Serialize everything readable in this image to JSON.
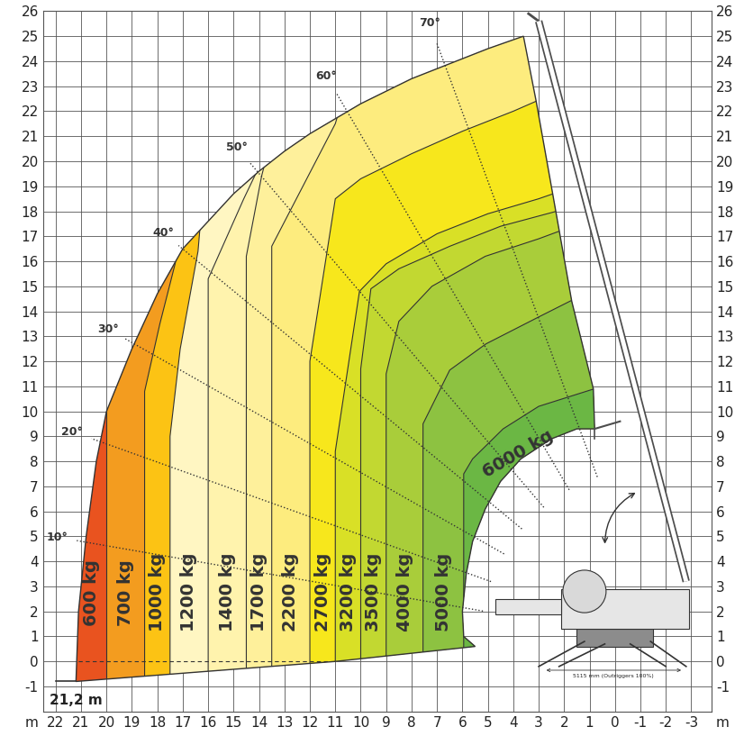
{
  "chart_data": {
    "type": "load_chart",
    "xlabel": "m",
    "xlim": [
      22.5,
      -3.8
    ],
    "ylim": [
      -2,
      26
    ],
    "xticks": [
      22,
      21,
      20,
      19,
      18,
      17,
      16,
      15,
      14,
      13,
      12,
      11,
      10,
      9,
      8,
      7,
      6,
      5,
      4,
      3,
      2,
      1,
      0,
      -1,
      -2,
      -3
    ],
    "yticks": [
      -1,
      0,
      1,
      2,
      3,
      4,
      5,
      6,
      7,
      8,
      9,
      10,
      11,
      12,
      13,
      14,
      15,
      16,
      17,
      18,
      19,
      20,
      21,
      22,
      23,
      24,
      25,
      26
    ],
    "grid": true,
    "envelope": [
      [
        21.2,
        -0.8
      ],
      [
        21.1,
        2
      ],
      [
        20.8,
        5
      ],
      [
        20.4,
        8
      ],
      [
        20,
        10
      ],
      [
        19,
        12.5
      ],
      [
        18,
        14.7
      ],
      [
        17,
        16.5
      ],
      [
        16,
        17.6
      ],
      [
        15,
        18.7
      ],
      [
        14,
        19.6
      ],
      [
        13,
        20.4
      ],
      [
        12,
        21.1
      ],
      [
        11,
        21.7
      ],
      [
        10,
        22.3
      ],
      [
        9,
        22.8
      ],
      [
        8,
        23.3
      ],
      [
        7,
        23.7
      ],
      [
        6,
        24.1
      ],
      [
        5,
        24.5
      ],
      [
        3.6,
        25
      ],
      [
        3.1,
        22.4
      ],
      [
        2.45,
        18.7
      ],
      [
        1.7,
        14.4
      ],
      [
        0.85,
        10.9
      ],
      [
        0.8,
        9.3
      ],
      [
        1.5,
        9.3
      ],
      [
        2.5,
        8.9
      ],
      [
        3.7,
        8.1
      ],
      [
        4.5,
        7.2
      ],
      [
        5.1,
        6.1
      ],
      [
        5.6,
        4.8
      ],
      [
        5.85,
        3.5
      ],
      [
        6.0,
        2.0
      ],
      [
        5.95,
        1.0
      ],
      [
        5.5,
        0.6
      ],
      [
        11,
        0.0
      ]
    ],
    "zones": [
      {
        "label": "600 kg",
        "color": "#e9531f"
      },
      {
        "label": "700 kg",
        "color": "#f39c1f",
        "boundary": [
          [
            20,
            -2
          ],
          [
            20,
            10.5
          ]
        ]
      },
      {
        "label": "1000 kg",
        "color": "#fcc314",
        "boundary": [
          [
            18.5,
            -2
          ],
          [
            18.5,
            10.8
          ],
          [
            17.9,
            13.5
          ],
          [
            17.3,
            15.9
          ],
          [
            17.2,
            16.5
          ]
        ]
      },
      {
        "label": "1200 kg",
        "color": "#fff6c2",
        "boundary": [
          [
            17.5,
            -2
          ],
          [
            17.5,
            9.0
          ],
          [
            17.1,
            12.5
          ],
          [
            16.4,
            16.4
          ],
          [
            16.3,
            17.6
          ]
        ]
      },
      {
        "label": "1400 kg",
        "color": "#fff3ad",
        "boundary": [
          [
            16,
            -2
          ],
          [
            16,
            15.3
          ],
          [
            14.6,
            18.5
          ],
          [
            13.8,
            20.2
          ]
        ]
      },
      {
        "label": "1700 kg",
        "color": "#fef09b",
        "boundary": [
          [
            14.5,
            -2
          ],
          [
            14.5,
            16.2
          ],
          [
            13.9,
            19.4
          ],
          [
            13.7,
            20.2
          ]
        ]
      },
      {
        "label": "2200 kg",
        "color": "#fdec7e",
        "boundary": [
          [
            13.5,
            -2
          ],
          [
            13.5,
            16.6
          ],
          [
            11.0,
            21.5
          ],
          [
            10.8,
            22.2
          ]
        ]
      },
      {
        "label": "2700 kg",
        "color": "#f7e71c",
        "boundary": [
          [
            12,
            -2
          ],
          [
            12,
            12.0
          ],
          [
            11.0,
            18.5
          ],
          [
            10,
            19.3
          ],
          [
            8,
            20.3
          ],
          [
            6,
            21.2
          ],
          [
            4,
            22.0
          ],
          [
            3.1,
            22.4
          ],
          [
            2.6,
            22.5
          ]
        ]
      },
      {
        "label": "3200 kg",
        "color": "#d9e026",
        "boundary": [
          [
            11,
            -2
          ],
          [
            11,
            8.4
          ],
          [
            10.05,
            14.8
          ],
          [
            9,
            15.9
          ],
          [
            7,
            17.1
          ],
          [
            5,
            17.9
          ],
          [
            3,
            18.5
          ],
          [
            2.43,
            18.7
          ],
          [
            2.0,
            18.8
          ]
        ]
      },
      {
        "label": "3500 kg",
        "color": "#c2d831",
        "boundary": [
          [
            10,
            -2
          ],
          [
            10,
            11.7
          ],
          [
            9.6,
            14.9
          ],
          [
            8.5,
            15.7
          ],
          [
            6.5,
            16.6
          ],
          [
            4.5,
            17.4
          ],
          [
            2.3,
            18.0
          ],
          [
            1.8,
            18.1
          ]
        ]
      },
      {
        "label": "4000 kg",
        "color": "#a9cd3a",
        "boundary": [
          [
            9,
            -2
          ],
          [
            9,
            11.5
          ],
          [
            8.5,
            13.6
          ],
          [
            7.2,
            15.0
          ],
          [
            5.1,
            16.2
          ],
          [
            3,
            16.9
          ],
          [
            2.2,
            17.2
          ],
          [
            1.7,
            17.3
          ]
        ]
      },
      {
        "label": "5000 kg",
        "color": "#8dc241",
        "boundary": [
          [
            7.55,
            -2
          ],
          [
            7.55,
            9.5
          ],
          [
            6.5,
            11.65
          ],
          [
            5.07,
            12.7
          ],
          [
            2.95,
            13.8
          ],
          [
            1.68,
            14.45
          ],
          [
            1.2,
            14.6
          ]
        ]
      },
      {
        "label": "6000 kg",
        "color": "#6bb744",
        "boundary": [
          [
            5.95,
            -2
          ],
          [
            5.95,
            7.5
          ],
          [
            5.6,
            8.1
          ],
          [
            4.4,
            9.3
          ],
          [
            3.0,
            10.2
          ],
          [
            0.82,
            10.9
          ],
          [
            0.4,
            11.0
          ]
        ]
      }
    ],
    "boom_pivot": [
      -1.7,
      0.8
    ],
    "angles": [
      {
        "value": 10,
        "label": "10°"
      },
      {
        "value": 20,
        "label": "20°"
      },
      {
        "value": 30,
        "label": "30°"
      },
      {
        "value": 40,
        "label": "40°"
      },
      {
        "value": 50,
        "label": "50°"
      },
      {
        "value": 60,
        "label": "60°"
      },
      {
        "value": 70,
        "label": "70°"
      }
    ],
    "max_reach": {
      "value": 21.2,
      "label": "21,2 m"
    },
    "outrigger_note": "5115 mm (Outriggers 100%)"
  }
}
